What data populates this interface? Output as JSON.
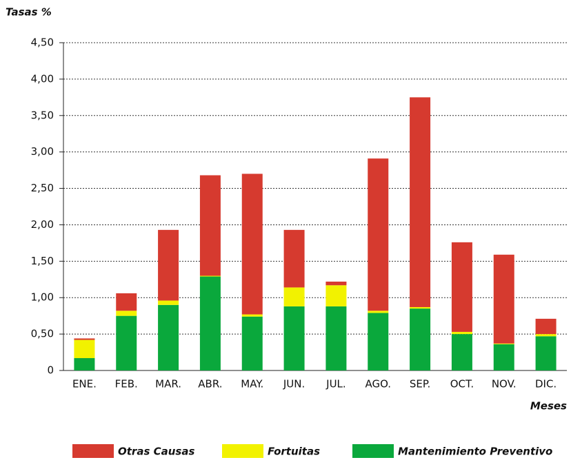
{
  "chart_data": {
    "type": "stacked_bar",
    "y_label": "Tasas %",
    "x_label": "Meses",
    "categories": [
      "ENE.",
      "FEB.",
      "MAR.",
      "ABR.",
      "MAY.",
      "JUN.",
      "JUL.",
      "AGO.",
      "SEP.",
      "OCT.",
      "NOV.",
      "DIC."
    ],
    "series": [
      {
        "name": "Otras Causas",
        "color": "#d63a2f",
        "values": [
          0.02,
          0.24,
          0.97,
          1.38,
          1.93,
          0.79,
          0.05,
          2.09,
          2.88,
          1.23,
          1.22,
          0.21
        ]
      },
      {
        "name": "Fortuitas",
        "color": "#f2f200",
        "values": [
          0.25,
          0.07,
          0.06,
          0.01,
          0.03,
          0.26,
          0.29,
          0.03,
          0.02,
          0.03,
          0.01,
          0.03
        ]
      },
      {
        "name": "Mantenimiento Preventivo",
        "color": "#0aa83c",
        "values": [
          0.17,
          0.75,
          0.9,
          1.29,
          0.74,
          0.88,
          0.88,
          0.79,
          0.85,
          0.5,
          0.36,
          0.47
        ]
      }
    ],
    "ylim": [
      0,
      4.5
    ],
    "yticks": [
      0,
      {
        "value": 0.5,
        "label": "0,50"
      },
      {
        "value": 1,
        "label": "1,00"
      },
      {
        "value": 1.5,
        "label": "1,50"
      },
      {
        "value": 2,
        "label": "2,00"
      },
      {
        "value": 2.5,
        "label": "2,50"
      },
      {
        "value": 3,
        "label": "3,00"
      },
      {
        "value": 3.5,
        "label": "3,50"
      },
      {
        "value": 4,
        "label": "4,00"
      },
      {
        "value": 4.5,
        "label": "4,50"
      }
    ],
    "grid": true
  }
}
